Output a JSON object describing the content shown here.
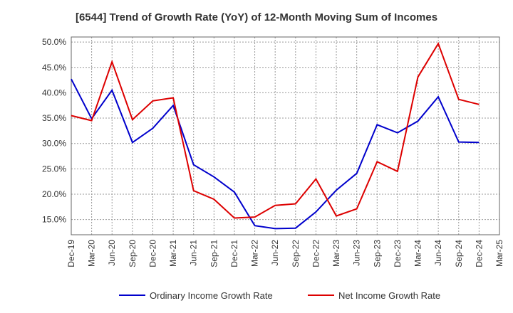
{
  "chart_data": {
    "type": "line",
    "title": "[6544]  Trend of Growth Rate (YoY) of 12-Month Moving Sum of Incomes",
    "xlabel": "",
    "ylabel": "",
    "x_tick_labels": [
      "Dec-19",
      "Mar-20",
      "Jun-20",
      "Sep-20",
      "Dec-20",
      "Mar-21",
      "Jun-21",
      "Sep-21",
      "Dec-21",
      "Mar-22",
      "Jun-22",
      "Sep-22",
      "Dec-22",
      "Mar-23",
      "Jun-23",
      "Sep-23",
      "Dec-23",
      "Mar-24",
      "Jun-24",
      "Sep-24",
      "Dec-24",
      "Mar-25"
    ],
    "y_tick_labels": [
      "15.0%",
      "20.0%",
      "25.0%",
      "30.0%",
      "35.0%",
      "40.0%",
      "45.0%",
      "50.0%"
    ],
    "y_ticks": [
      15,
      20,
      25,
      30,
      35,
      40,
      45,
      50
    ],
    "ylim": [
      12,
      51
    ],
    "grid": true,
    "legend_position": "bottom",
    "series": [
      {
        "name": "Ordinary Income Growth Rate",
        "color": "#0000cc",
        "x": [
          "Dec-19",
          "Mar-20",
          "Jun-20",
          "Sep-20",
          "Dec-20",
          "Mar-21",
          "Jun-21",
          "Sep-21",
          "Dec-21",
          "Mar-22",
          "Jun-22",
          "Sep-22",
          "Dec-22",
          "Mar-23",
          "Jun-23",
          "Sep-23",
          "Dec-23",
          "Mar-24",
          "Jun-24",
          "Sep-24",
          "Dec-24"
        ],
        "values": [
          42.7,
          34.9,
          40.5,
          30.2,
          33.0,
          37.5,
          25.8,
          23.4,
          20.4,
          13.8,
          13.2,
          13.3,
          16.5,
          20.8,
          24.1,
          33.7,
          32.1,
          34.4,
          39.2,
          30.3,
          30.2
        ]
      },
      {
        "name": "Net Income Growth Rate",
        "color": "#dd0000",
        "x": [
          "Dec-19",
          "Mar-20",
          "Jun-20",
          "Sep-20",
          "Dec-20",
          "Mar-21",
          "Jun-21",
          "Sep-21",
          "Dec-21",
          "Mar-22",
          "Jun-22",
          "Sep-22",
          "Dec-22",
          "Mar-23",
          "Jun-23",
          "Sep-23",
          "Dec-23",
          "Mar-24",
          "Jun-24",
          "Sep-24",
          "Dec-24"
        ],
        "values": [
          35.5,
          34.5,
          46.1,
          34.7,
          38.4,
          39.0,
          20.7,
          19.0,
          15.3,
          15.5,
          17.8,
          18.1,
          23.0,
          15.7,
          17.1,
          26.4,
          24.5,
          43.1,
          49.7,
          38.7,
          37.7
        ]
      }
    ]
  }
}
